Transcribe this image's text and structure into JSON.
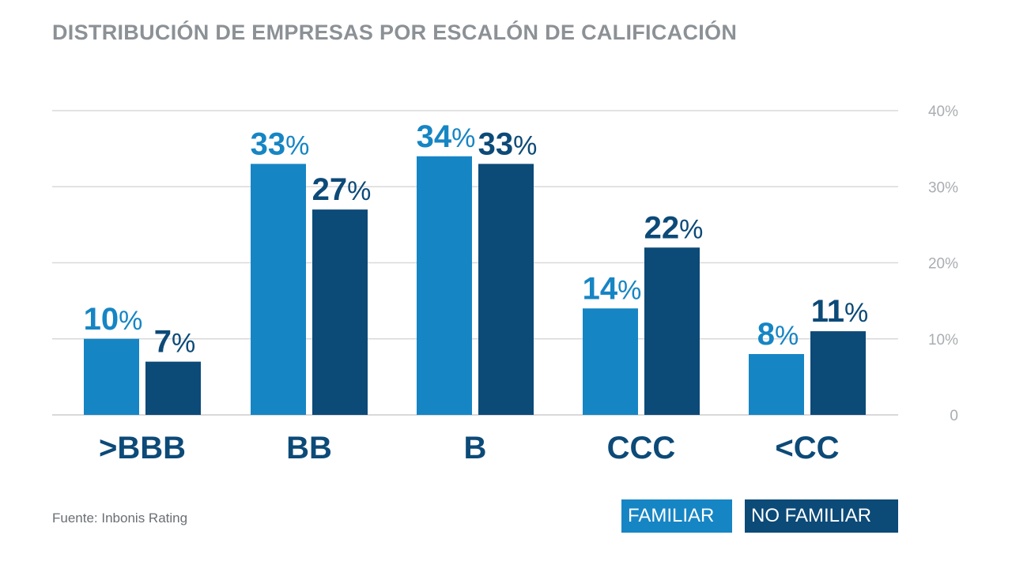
{
  "title": "DISTRIBUCIÓN DE EMPRESAS POR ESCALÓN DE CALIFICACIÓN",
  "source": "Fuente: Inbonis Rating",
  "colors": {
    "familiar": "#1685c4",
    "no_familiar": "#0c4a78",
    "grid": "#d9d9d9",
    "axis_label": "#a9adb1",
    "category": "#0c4a78"
  },
  "legend": [
    {
      "label": "FAMILIAR",
      "color": "#1685c4"
    },
    {
      "label": "NO FAMILIAR",
      "color": "#0c4a78"
    }
  ],
  "chart_data": {
    "type": "bar",
    "title": "DISTRIBUCIÓN DE EMPRESAS POR ESCALÓN DE CALIFICACIÓN",
    "categories": [
      ">BBB",
      "BB",
      "B",
      "CCC",
      "<CC"
    ],
    "series": [
      {
        "name": "FAMILIAR",
        "values": [
          10,
          33,
          34,
          14,
          8
        ],
        "color": "#1685c4"
      },
      {
        "name": "NO FAMILIAR",
        "values": [
          7,
          27,
          33,
          22,
          11
        ],
        "color": "#0c4a78"
      }
    ],
    "ylim": [
      0,
      40
    ],
    "yticks": [
      0,
      10,
      20,
      30,
      40
    ],
    "ytick_labels": [
      "0",
      "10%",
      "20%",
      "30%",
      "40%"
    ],
    "data_labels": [
      [
        "10",
        "33",
        "34",
        "14",
        "8"
      ],
      [
        "7",
        "27",
        "33",
        "22",
        "11"
      ]
    ],
    "label_suffix": "%",
    "grid": true,
    "yaxis_side": "right",
    "legend_position": "bottom-right"
  }
}
